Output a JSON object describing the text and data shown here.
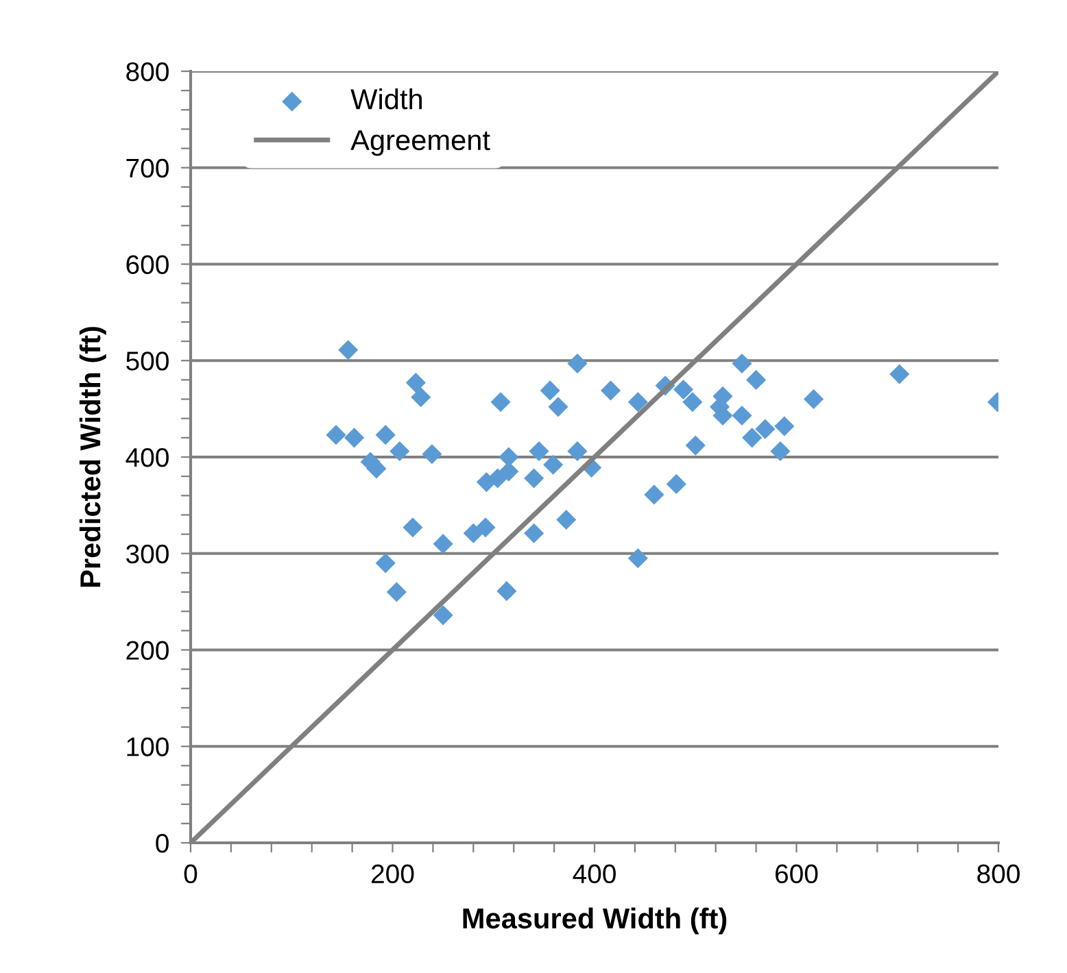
{
  "chart_data": {
    "type": "scatter",
    "xlabel": "Measured Width (ft)",
    "ylabel": "Predicted Width (ft)",
    "xlim": [
      0,
      800
    ],
    "ylim": [
      0,
      800
    ],
    "xticks": [
      0,
      {
        "value": 40,
        "label": null
      },
      {
        "value": 80,
        "label": null
      },
      {
        "value": 120,
        "label": null
      },
      {
        "value": 160,
        "label": null
      },
      200,
      {
        "value": 240,
        "label": null
      },
      {
        "value": 280,
        "label": null
      },
      {
        "value": 320,
        "label": null
      },
      {
        "value": 360,
        "label": null
      },
      400,
      {
        "value": 440,
        "label": null
      },
      {
        "value": 480,
        "label": null
      },
      {
        "value": 520,
        "label": null
      },
      {
        "value": 560,
        "label": null
      },
      600,
      {
        "value": 640,
        "label": null
      },
      {
        "value": 680,
        "label": null
      },
      {
        "value": 720,
        "label": null
      },
      {
        "value": 760,
        "label": null
      },
      800
    ],
    "yticks": [
      0,
      {
        "value": 20,
        "label": null
      },
      {
        "value": 40,
        "label": null
      },
      {
        "value": 60,
        "label": null
      },
      {
        "value": 80,
        "label": null
      },
      100,
      {
        "value": 120,
        "label": null
      },
      {
        "value": 140,
        "label": null
      },
      {
        "value": 160,
        "label": null
      },
      {
        "value": 180,
        "label": null
      },
      200,
      {
        "value": 220,
        "label": null
      },
      {
        "value": 240,
        "label": null
      },
      {
        "value": 260,
        "label": null
      },
      {
        "value": 280,
        "label": null
      },
      300,
      {
        "value": 320,
        "label": null
      },
      {
        "value": 340,
        "label": null
      },
      {
        "value": 360,
        "label": null
      },
      {
        "value": 380,
        "label": null
      },
      400,
      {
        "value": 420,
        "label": null
      },
      {
        "value": 440,
        "label": null
      },
      {
        "value": 460,
        "label": null
      },
      {
        "value": 480,
        "label": null
      },
      500,
      {
        "value": 520,
        "label": null
      },
      {
        "value": 540,
        "label": null
      },
      {
        "value": 560,
        "label": null
      },
      {
        "value": 580,
        "label": null
      },
      600,
      {
        "value": 620,
        "label": null
      },
      {
        "value": 640,
        "label": null
      },
      {
        "value": 660,
        "label": null
      },
      {
        "value": 680,
        "label": null
      },
      700,
      {
        "value": 720,
        "label": null
      },
      {
        "value": 740,
        "label": null
      },
      {
        "value": 760,
        "label": null
      },
      {
        "value": 780,
        "label": null
      },
      800
    ],
    "grid": "y",
    "legend": "top left",
    "marker": "diamond",
    "series": [
      {
        "name": "Width",
        "color": "#5b9bd5",
        "x": [
          144,
          156,
          162,
          178,
          184,
          193,
          207,
          193,
          204,
          220,
          223,
          228,
          239,
          250,
          250,
          280,
          292,
          293,
          304,
          307,
          315,
          315,
          313,
          340,
          340,
          345,
          359,
          356,
          364,
          372,
          383,
          383,
          397,
          416,
          443,
          443,
          459,
          481,
          470,
          488,
          497,
          500,
          527,
          524,
          527,
          546,
          560,
          546,
          556,
          569,
          588,
          584,
          617,
          702,
          799
        ],
        "values": [
          423,
          511,
          420,
          395,
          388,
          423,
          406,
          290,
          260,
          327,
          477,
          462,
          403,
          310,
          236,
          321,
          327,
          374,
          378,
          457,
          385,
          400,
          261,
          321,
          378,
          406,
          392,
          469,
          452,
          335,
          497,
          406,
          389,
          469,
          457,
          295,
          361,
          372,
          474,
          470,
          457,
          412,
          463,
          452,
          443,
          497,
          480,
          443,
          420,
          429,
          432,
          406,
          460,
          486,
          457
        ]
      },
      {
        "name": "Agreement",
        "type": "line",
        "color": "#808080",
        "marker": "none",
        "line_style": "solid",
        "x": [
          0,
          800
        ],
        "values": [
          0,
          800
        ]
      }
    ]
  }
}
